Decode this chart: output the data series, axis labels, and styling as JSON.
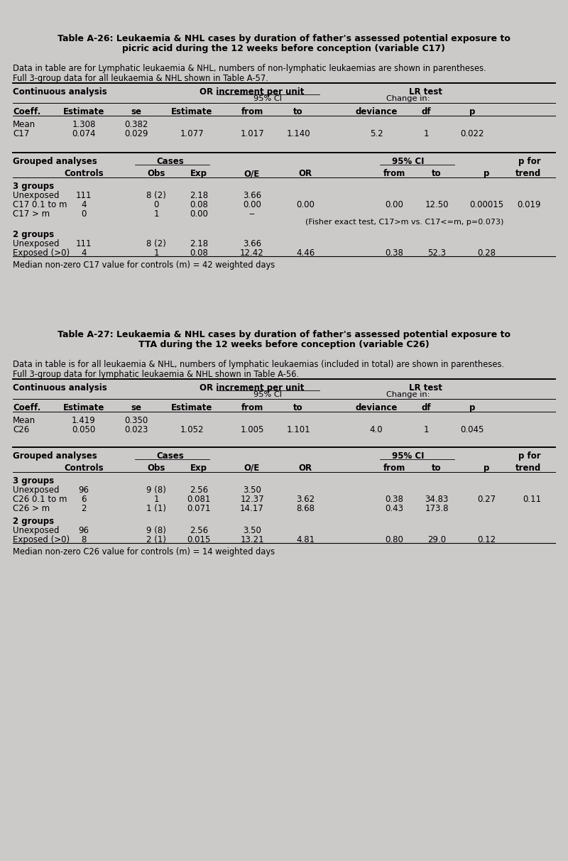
{
  "bg_color": "#ccc9c9",
  "title1_line1": "Table A-26: Leukaemia & NHL cases by duration of father's assessed potential exposure to",
  "title1_line2": "picric acid during the 12 weeks before conception (variable C17)",
  "desc1_line1": "Data in table are for Lymphatic leukaemia & NHL, numbers of non-lymphatic leukaemias are shown in parentheses.",
  "desc1_line2": "Full 3-group data for all leukaemia & NHL shown in Table A-57.",
  "title2_line1": "Table A-27: Leukaemia & NHL cases by duration of father's assessed potential exposure to",
  "title2_line2": "TTA during the 12 weeks before conception (variable C26)",
  "desc2_line1": "Data in table is for all leukaemia & NHL, numbers of lymphatic leukaemias (included in total) are shown in parentheses.",
  "desc2_line2": "Full 3-group data for lymphatic leukaemia & NHL shown in Table A-56.",
  "median1": "Median non-zero C17 value for controls (m) = 42 weighted days",
  "median2": "Median non-zero C26 value for controls (m) = 14 weighted days",
  "fisher_note": "(Fisher exact test, C17>m vs. C17<=m, p=0.073)"
}
